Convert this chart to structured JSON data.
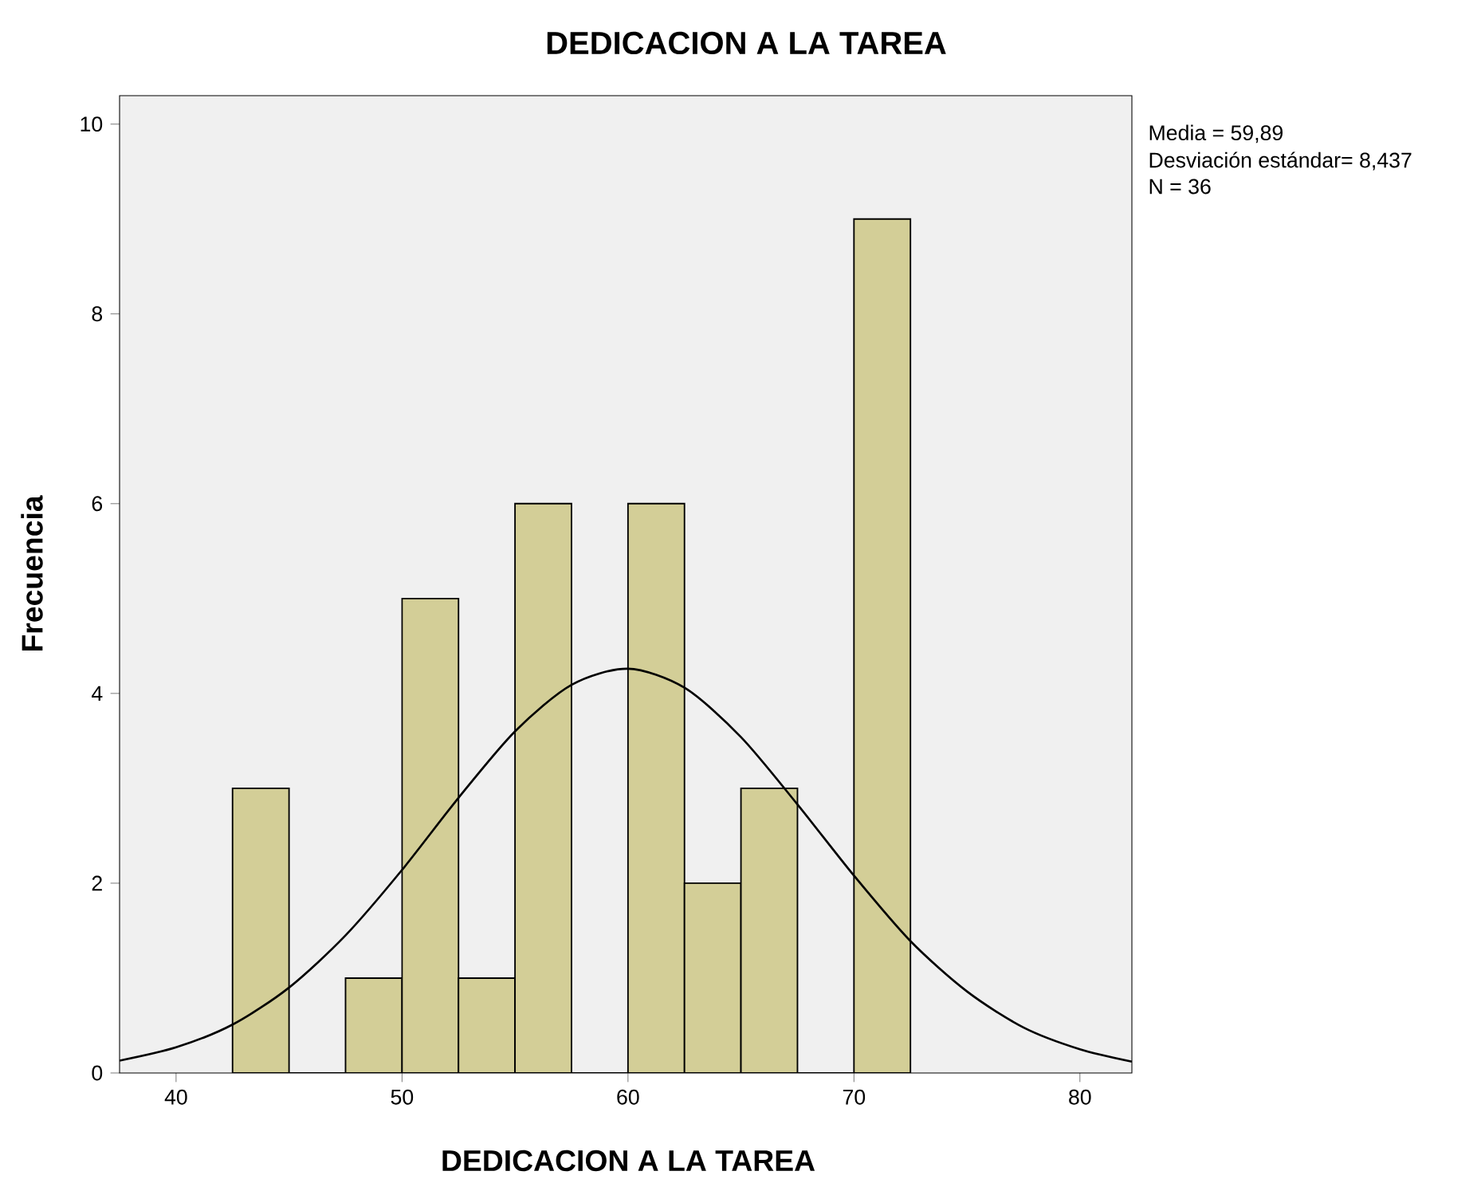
{
  "chart_data": {
    "type": "histogram",
    "title": "DEDICACION A LA TAREA",
    "xlabel": "DEDICACION A LA TAREA",
    "ylabel": "Frecuencia",
    "bins": [
      42.5,
      45,
      47.5,
      50,
      52.5,
      55,
      57.5,
      60,
      62.5,
      65,
      67.5,
      70,
      72.5
    ],
    "values": [
      3,
      0,
      1,
      5,
      1,
      6,
      0,
      6,
      2,
      3,
      0,
      9
    ],
    "color": "#d3ce97",
    "series": [
      {
        "type": "line",
        "color": "#000000",
        "x": [
          37.5,
          40,
          42.5,
          45,
          47.5,
          50,
          52.5,
          55,
          57.5,
          60,
          62.5,
          65,
          67.5,
          70,
          72.5,
          75,
          77.5,
          80,
          82.3
        ],
        "values": [
          0.13,
          0.27,
          0.51,
          0.9,
          1.45,
          2.14,
          2.9,
          3.6,
          4.09,
          4.26,
          4.06,
          3.54,
          2.83,
          2.08,
          1.39,
          0.86,
          0.48,
          0.25,
          0.12
        ]
      }
    ],
    "xlim": [
      37.5,
      82.3
    ],
    "ylim": [
      0,
      10.3
    ],
    "xticks": [
      40,
      50,
      60,
      70,
      80
    ],
    "yticks": [
      0,
      2,
      4,
      6,
      8,
      10
    ],
    "grid": false,
    "annotations": [
      "Media = 59,89",
      "Desviación estándar= 8,437",
      "N = 36"
    ]
  }
}
